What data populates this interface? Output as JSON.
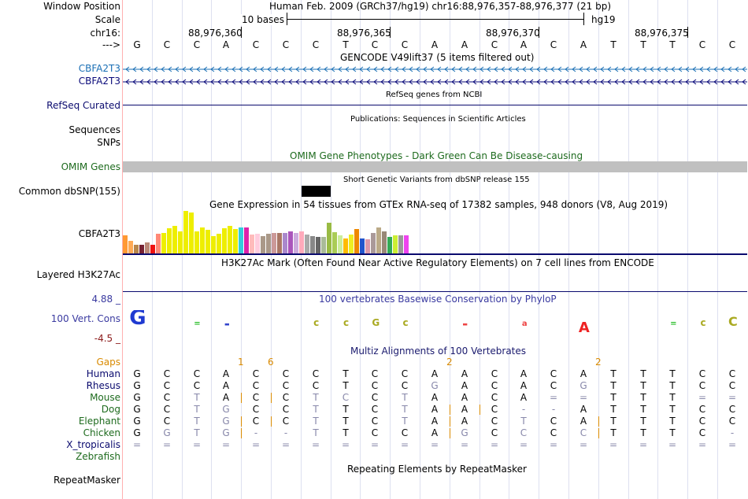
{
  "header": {
    "window_position_label": "Window Position",
    "scale_label": "Scale",
    "chrom_label": "chr16:",
    "arrow_label": "--->",
    "assembly_line": "Human Feb. 2009 (GRCh37/hg19)   chr16:88,976,357-88,976,377 (21 bp)",
    "scale_text": "10 bases",
    "db_name": "hg19",
    "coords": [
      "88,976,360",
      "88,976,365",
      "88,976,370",
      "88,976,375"
    ],
    "bases": [
      "G",
      "C",
      "C",
      "A",
      "C",
      "C",
      "C",
      "T",
      "C",
      "C",
      "A",
      "A",
      "C",
      "A",
      "C",
      "A",
      "T",
      "T",
      "T",
      "C",
      "C"
    ]
  },
  "tracks": {
    "gencode": {
      "title": "GENCODE V49lift37 (5 items filtered out)",
      "rows": [
        "CBFA2T3",
        "CBFA2T3"
      ],
      "colors": [
        "#1a6fb5",
        "#0a0a7a"
      ]
    },
    "refseq": {
      "title": "RefSeq genes from NCBI",
      "label": "RefSeq Curated",
      "color": "#0a0a6e"
    },
    "publications": {
      "title": "Publications: Sequences in Scientific Articles",
      "label": "Sequences"
    },
    "snps_label": "SNPs",
    "omim": {
      "title": "OMIM Gene Phenotypes - Dark Green Can Be Disease-causing",
      "label": "OMIM Genes",
      "color": "#1e6b1e"
    },
    "dbsnp": {
      "title": "Short Genetic Variants from dbSNP release 155",
      "label": "Common dbSNP(155)"
    },
    "gtex": {
      "title": "Gene Expression in 54 tissues from GTEx RNA-seq of 17382 samples, 948 donors (V8, Aug 2019)",
      "label": "CBFA2T3"
    },
    "h3k27ac": {
      "title": "H3K27Ac Mark (Often Found Near Active Regulatory Elements) on 7 cell lines from ENCODE",
      "label": "Layered H3K27Ac"
    },
    "phylop": {
      "title": "100 vertebrates Basewise Conservation by PhyloP",
      "label": "100 Vert. Cons",
      "max": "4.88 _",
      "min": "-4.5 _",
      "color": "#3a3aa0"
    },
    "multiz": {
      "title": "Multiz Alignments of 100 Vertebrates",
      "title_color": "#1a1a6e",
      "gaps_label": "Gaps",
      "gaps": [
        {
          "after_col": 3,
          "text": "1"
        },
        {
          "after_col": 4,
          "text": "6"
        },
        {
          "after_col": 10,
          "text": "2"
        },
        {
          "after_col": 15,
          "text": "2"
        }
      ],
      "species": [
        {
          "name": "Human",
          "color": "#0a0a6e",
          "row": [
            "G",
            "C",
            "C",
            "A",
            "C",
            "C",
            "C",
            "T",
            "C",
            "C",
            "A",
            "A",
            "C",
            "A",
            "C",
            "A",
            "T",
            "T",
            "T",
            "C",
            "C"
          ]
        },
        {
          "name": "Rhesus",
          "color": "#0a0a6e",
          "row": [
            "G",
            "C",
            "C",
            "A",
            "C",
            "C",
            "C",
            "T",
            "C",
            "C",
            "G",
            "A",
            "C",
            "A",
            "C",
            "G",
            "T",
            "T",
            "T",
            "C",
            "C"
          ]
        },
        {
          "name": "Mouse",
          "color": "#1e6b1e",
          "row": [
            "G",
            "C",
            "T",
            "A",
            "C",
            "C",
            "T",
            "C",
            "C",
            "T",
            "A",
            "A",
            "C",
            "A",
            "=",
            "=",
            "T",
            "T",
            "T",
            "=",
            "="
          ]
        },
        {
          "name": "Dog",
          "color": "#1e6b1e",
          "row": [
            "G",
            "C",
            "T",
            "G",
            "C",
            "C",
            "T",
            "T",
            "C",
            "T",
            "A",
            "A",
            "C",
            "-",
            "-",
            "A",
            "T",
            "T",
            "T",
            "C",
            "C"
          ]
        },
        {
          "name": "Elephant",
          "color": "#1e6b1e",
          "row": [
            "G",
            "C",
            "T",
            "G",
            "C",
            "C",
            "T",
            "T",
            "C",
            "T",
            "A",
            "A",
            "C",
            "T",
            "C",
            "A",
            "T",
            "T",
            "T",
            "C",
            "C"
          ]
        },
        {
          "name": "Chicken",
          "color": "#1e6b1e",
          "row": [
            "G",
            "G",
            "T",
            "G",
            "-",
            "-",
            "T",
            "T",
            "C",
            "C",
            "A",
            "G",
            "C",
            "C",
            "C",
            "C",
            "T",
            "T",
            "T",
            "C",
            "-"
          ]
        },
        {
          "name": "X_tropicalis",
          "color": "#0a0a6e",
          "row": [
            "=",
            "=",
            "=",
            "=",
            "=",
            "=",
            "=",
            "=",
            "=",
            "=",
            "=",
            "=",
            "=",
            "=",
            "=",
            "=",
            "=",
            "=",
            "=",
            "=",
            "="
          ]
        },
        {
          "name": "Zebrafish",
          "color": "#1e6b1e",
          "row": []
        }
      ]
    },
    "repeatmasker": {
      "title": "Repeating Elements by RepeatMasker",
      "label": "RepeatMasker"
    }
  },
  "colors": {
    "grid": "#dde0f0",
    "guide_red": "#ffb0b0",
    "gaps": "#d98a00",
    "omim_bar": "#c0c0c0"
  }
}
